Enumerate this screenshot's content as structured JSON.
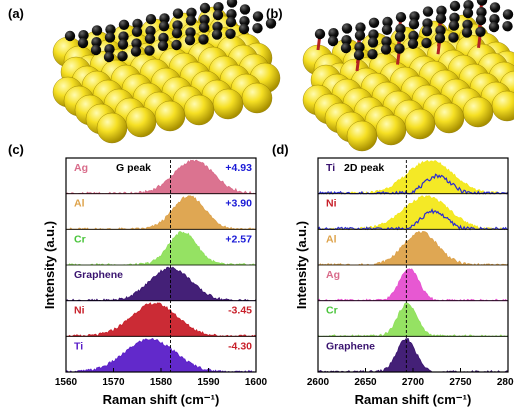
{
  "panels": {
    "a": "(a)",
    "b": "(b)",
    "c": "(c)",
    "d": "(d)"
  },
  "colors": {
    "gold": "#f1dd1c",
    "carbon": "#111111",
    "bond": "#b22222",
    "red_text": "#c8202a",
    "blue_text": "#1a1ad6"
  },
  "chart_data": [
    {
      "type": "area",
      "panel": "(c)",
      "annotation": "G peak",
      "xlabel": "Raman shift (cm⁻¹)",
      "ylabel": "Intensity (a.u.)",
      "xlim": [
        1560,
        1600
      ],
      "xticks": [
        "1560",
        "1570",
        "1580",
        "1590",
        "1600"
      ],
      "reference_line": 1582,
      "series": [
        {
          "name": "Ag",
          "shift": "+4.93",
          "center": 1586.9,
          "width": 4.2,
          "color": "#d96b8a",
          "text_color": "#d96b8a",
          "shift_color": "#1a1ad6"
        },
        {
          "name": "Al",
          "shift": "+3.90",
          "center": 1585.9,
          "width": 3.4,
          "color": "#dda24a",
          "text_color": "#dda24a",
          "shift_color": "#1a1ad6"
        },
        {
          "name": "Cr",
          "shift": "+2.57",
          "center": 1584.6,
          "width": 3.0,
          "color": "#8fe05b",
          "text_color": "#49c43a",
          "shift_color": "#1a1ad6"
        },
        {
          "name": "Graphene",
          "shift": "",
          "center": 1582.0,
          "width": 4.3,
          "color": "#3a1470",
          "text_color": "#3a1470",
          "shift_color": "#000000"
        },
        {
          "name": "Ni",
          "shift": "-3.45",
          "center": 1578.6,
          "width": 4.8,
          "color": "#c8202a",
          "text_color": "#c8202a",
          "shift_color": "#c8202a"
        },
        {
          "name": "Ti",
          "shift": "-4.30",
          "center": 1577.7,
          "width": 5.2,
          "color": "#5a1ec8",
          "text_color": "#5a1ec8",
          "shift_color": "#c8202a"
        }
      ]
    },
    {
      "type": "area",
      "panel": "(d)",
      "annotation": "2D peak",
      "xlabel": "Raman shift (cm⁻¹)",
      "ylabel": "Intensity (a.u.)",
      "xlim": [
        2600,
        2800
      ],
      "xticks": [
        "2600",
        "2650",
        "2700",
        "2750",
        "2800"
      ],
      "reference_line": 2693,
      "series": [
        {
          "name": "Ti",
          "center": 2718,
          "width": 24,
          "color": "#f3e81a",
          "text_color": "#3a1470"
        },
        {
          "name": "Ni",
          "center": 2714,
          "width": 24,
          "color": "#f3e81a",
          "text_color": "#c8202a"
        },
        {
          "name": "Al",
          "center": 2708,
          "width": 18,
          "color": "#dda24a",
          "text_color": "#dda24a"
        },
        {
          "name": "Ag",
          "center": 2696,
          "width": 10,
          "color": "#e64fd0",
          "text_color": "#d96b8a"
        },
        {
          "name": "Cr",
          "center": 2694,
          "width": 10,
          "color": "#8fe05b",
          "text_color": "#49c43a"
        },
        {
          "name": "Graphene",
          "center": 2693,
          "width": 10,
          "color": "#3a1470",
          "text_color": "#3a1470"
        }
      ]
    }
  ]
}
